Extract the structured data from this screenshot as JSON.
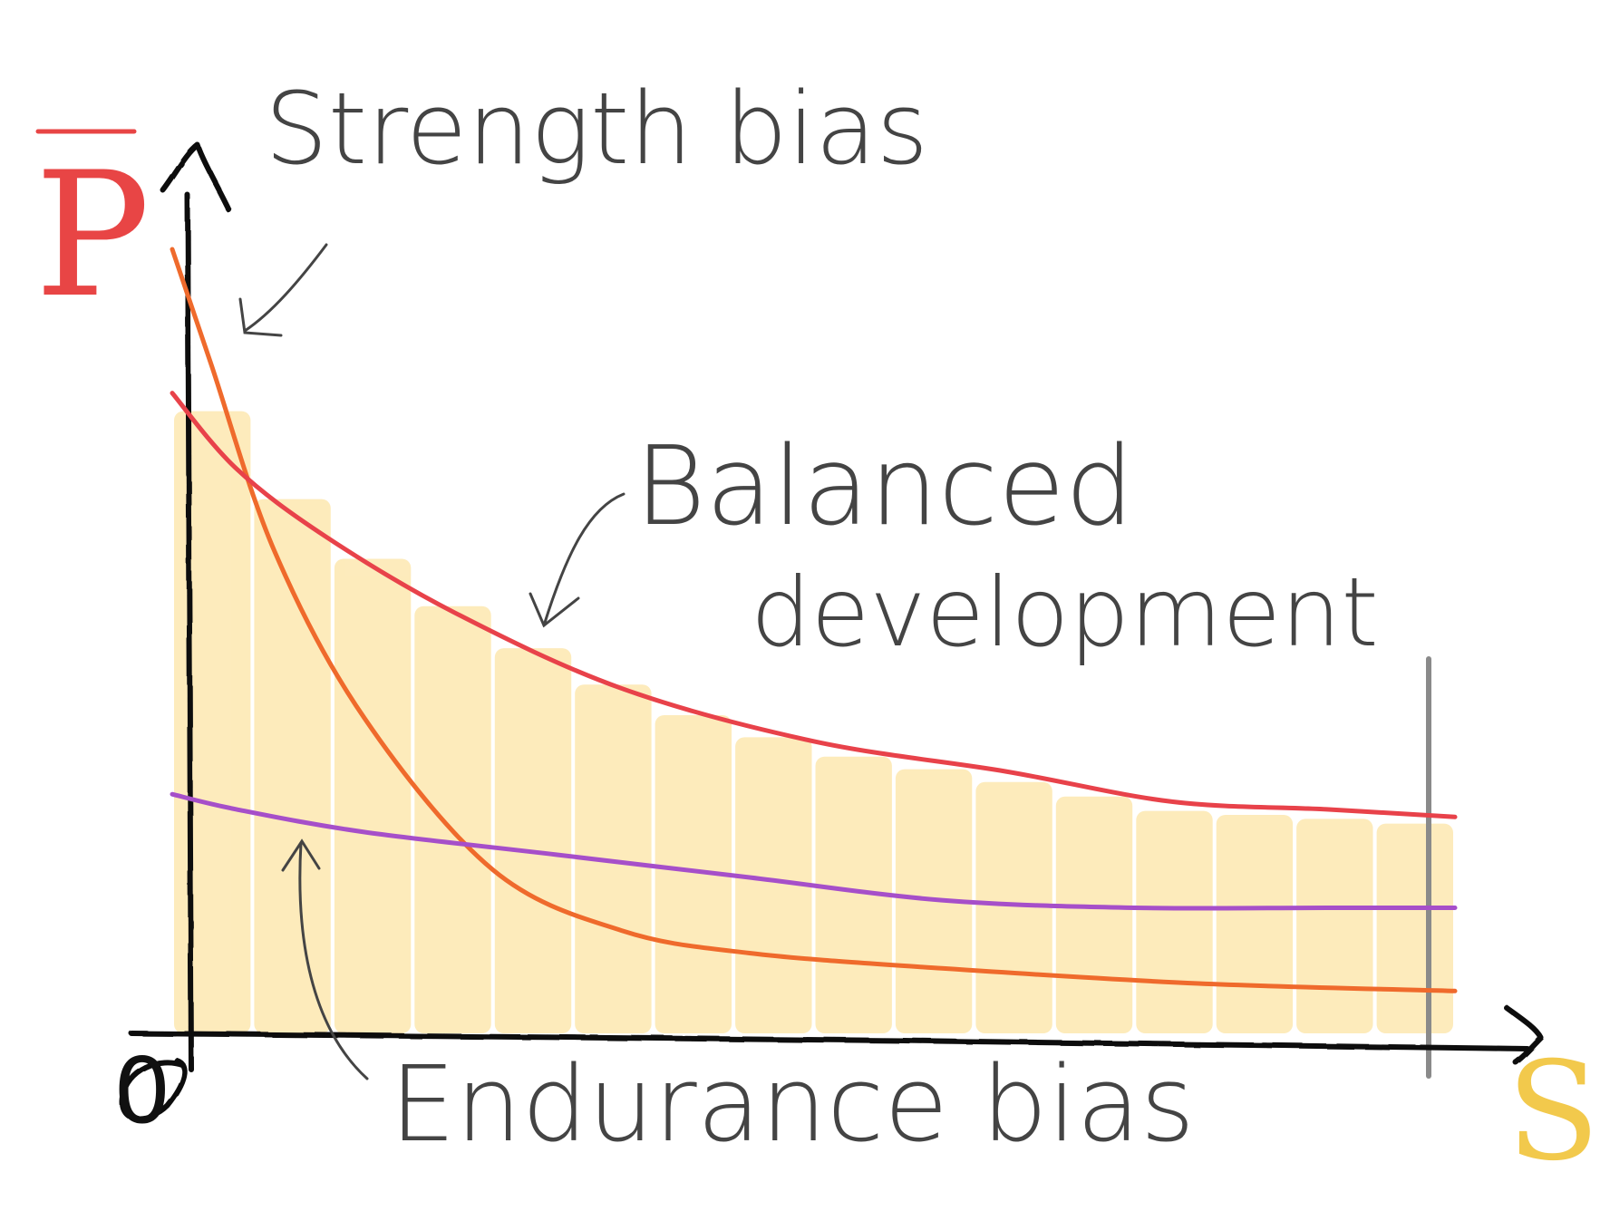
{
  "labels": {
    "y_axis": "P",
    "x_axis": "S",
    "origin": "0",
    "strength_bias": "Strength bias",
    "balanced_line1": "Balanced",
    "balanced_line2": "development",
    "endurance_bias": "Endurance bias"
  },
  "colors": {
    "y_axis_label": "#e84545",
    "x_axis_label": "#f2c94c",
    "axes": "#111111",
    "annotation_text": "#444444",
    "strength_curve": "#ef6a2c",
    "balanced_curve": "#e8424a",
    "endurance_curve": "#a64fc9",
    "shaded_area": "#fde8b0",
    "limit_line": "#8a8a8a"
  },
  "chart_data": {
    "type": "line",
    "x_range": [
      0,
      1
    ],
    "y_range": [
      0,
      1
    ],
    "series": [
      {
        "key": "strength",
        "x": [
          0.0,
          0.03,
          0.08,
          0.15,
          0.25,
          0.35,
          0.45,
          0.6,
          0.8,
          1.0
        ],
        "y": [
          1.0,
          0.85,
          0.6,
          0.38,
          0.18,
          0.1,
          0.07,
          0.05,
          0.03,
          0.02
        ]
      },
      {
        "key": "balanced",
        "x": [
          0.0,
          0.05,
          0.12,
          0.22,
          0.35,
          0.5,
          0.65,
          0.78,
          0.9,
          1.0
        ],
        "y": [
          0.81,
          0.71,
          0.62,
          0.52,
          0.42,
          0.35,
          0.31,
          0.27,
          0.26,
          0.25
        ]
      },
      {
        "key": "endurance",
        "x": [
          0.0,
          0.05,
          0.15,
          0.3,
          0.45,
          0.6,
          0.75,
          0.9,
          1.0
        ],
        "y": [
          0.28,
          0.26,
          0.23,
          0.2,
          0.17,
          0.14,
          0.13,
          0.13,
          0.13
        ]
      }
    ],
    "shaded_region": "area under balanced development curve",
    "limit_marker_x": 1.0
  }
}
